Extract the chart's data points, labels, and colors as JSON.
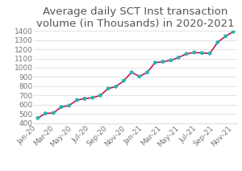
{
  "title": "Average daily SCT Inst transaction\nvolume (in Thousands) in 2020-2021",
  "x_labels": [
    "Jan-20",
    "Mar-20",
    "May-20",
    "Jul-20",
    "Sep-20",
    "Nov-20",
    "Jan-21",
    "Mar-21",
    "May-21",
    "Jul-21",
    "Sep-21",
    "Nov-21"
  ],
  "y_values": [
    455,
    505,
    510,
    575,
    590,
    650,
    665,
    675,
    700,
    775,
    795,
    860,
    950,
    905,
    950,
    1055,
    1065,
    1080,
    1110,
    1150,
    1165,
    1160,
    1155,
    1275,
    1340,
    1390
  ],
  "line_color": "#c0185a",
  "marker_color": "#26b5b0",
  "marker_size": 3.5,
  "line_width": 1.2,
  "ylim": [
    400,
    1400
  ],
  "yticks": [
    400,
    500,
    600,
    700,
    800,
    900,
    1000,
    1100,
    1200,
    1300,
    1400
  ],
  "background_color": "#ffffff",
  "grid_color": "#d8d8d8",
  "title_fontsize": 9.5,
  "tick_fontsize": 6.5,
  "title_color": "#555555"
}
